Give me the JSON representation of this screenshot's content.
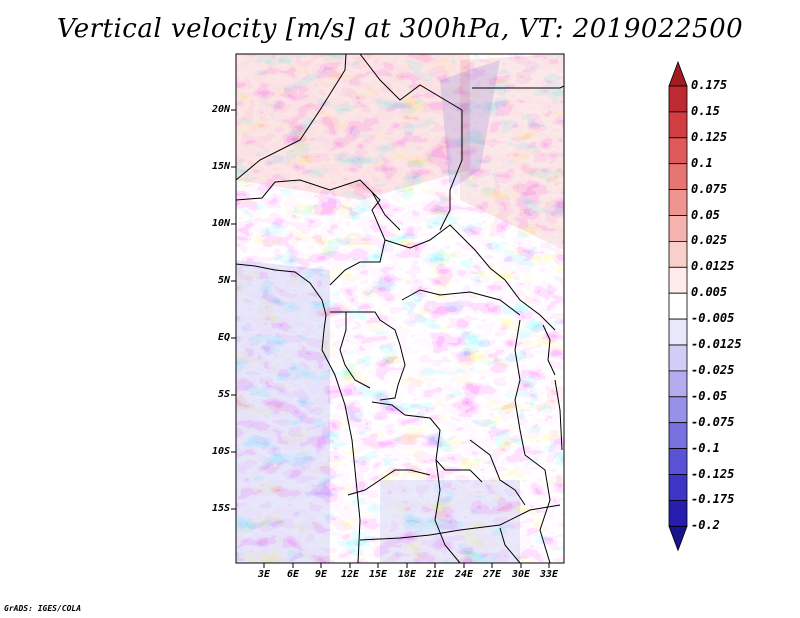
{
  "title": "Vertical velocity [m/s] at 300hPa, VT: 2019022500",
  "credit": "GrADS: IGES/COLA",
  "map": {
    "variable": "Vertical velocity",
    "units": "m/s",
    "level": "300hPa",
    "valid_time": "2019022500",
    "lat_ticks": [
      "20N",
      "15N",
      "10N",
      "5N",
      "EQ",
      "5S",
      "10S",
      "15S"
    ],
    "lon_ticks": [
      "3E",
      "6E",
      "9E",
      "12E",
      "15E",
      "18E",
      "21E",
      "24E",
      "27E",
      "30E",
      "33E"
    ]
  },
  "colorbar": {
    "labels": [
      "0.175",
      "0.15",
      "0.125",
      "0.1",
      "0.075",
      "0.05",
      "0.025",
      "0.0125",
      "0.005",
      "-0.005",
      "-0.0125",
      "-0.025",
      "-0.05",
      "-0.075",
      "-0.1",
      "-0.125",
      "-0.175",
      "-0.2"
    ],
    "colors": [
      "#a11b22",
      "#be2a31",
      "#d23e42",
      "#e0595b",
      "#e77672",
      "#ef948f",
      "#f5b2ae",
      "#f9cfcb",
      "#fdeceb",
      "#ffffff",
      "#e9e7fb",
      "#d1cdf6",
      "#b3adf0",
      "#9691e9",
      "#7871e0",
      "#5a52d6",
      "#3c35c6",
      "#271eb0",
      "#1a138f"
    ]
  }
}
